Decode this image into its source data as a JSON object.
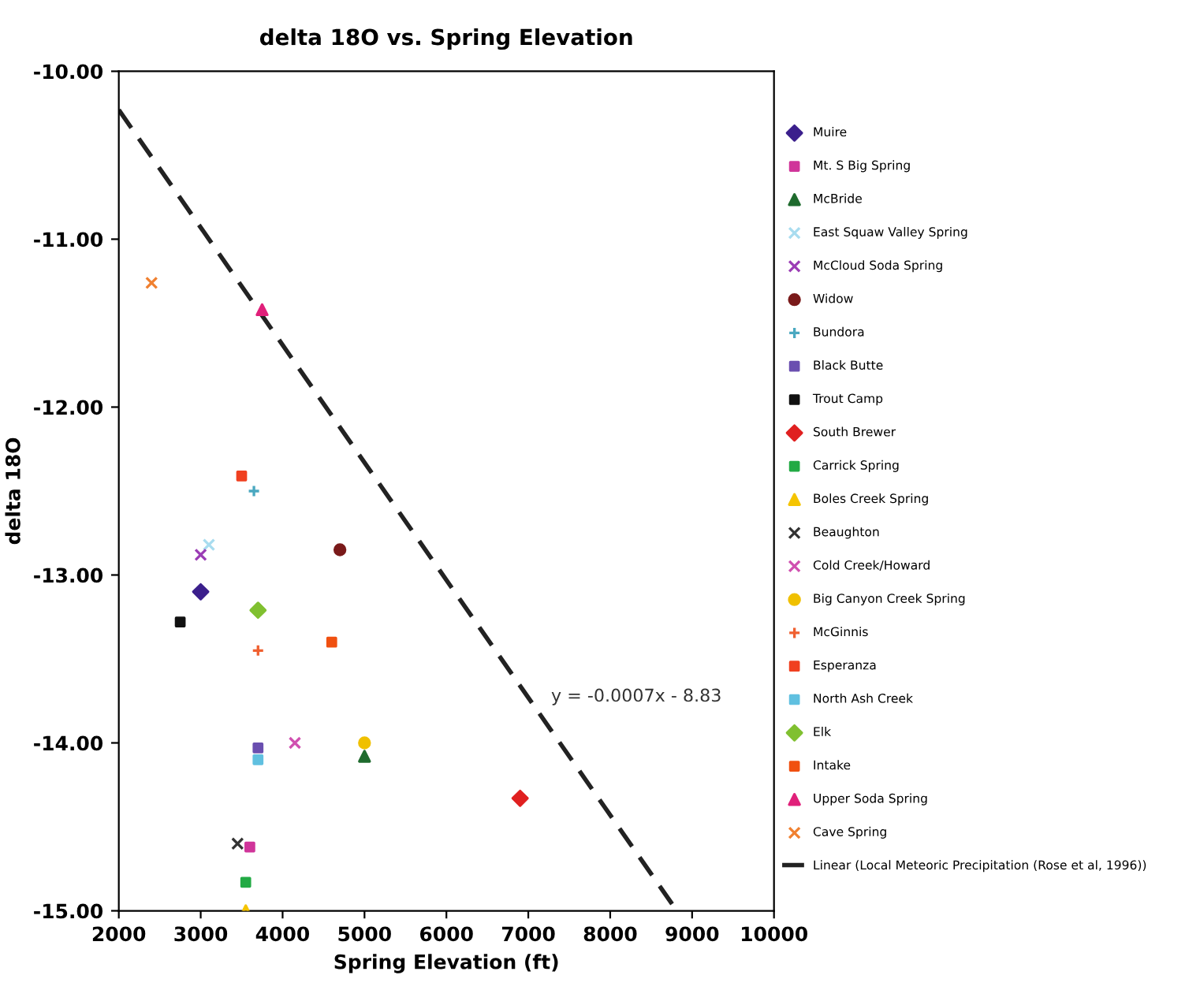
{
  "chart_data": {
    "type": "scatter",
    "title": "delta 18O vs. Spring Elevation",
    "xlabel": "Spring Elevation (ft)",
    "ylabel": "delta 18O",
    "xlim": [
      2000,
      10000
    ],
    "xticks": [
      2000,
      3000,
      4000,
      5000,
      6000,
      7000,
      8000,
      9000,
      10000
    ],
    "ylim": [
      -15,
      -10
    ],
    "yticks": [
      {
        "value": -15,
        "label": "-15.00"
      },
      {
        "value": -14,
        "label": "-14.00"
      },
      {
        "value": -13,
        "label": "-13.00"
      },
      {
        "value": -12,
        "label": "-12.00"
      },
      {
        "value": -11,
        "label": "-11.00"
      },
      {
        "value": -10,
        "label": "-10.00"
      }
    ],
    "grid": false,
    "legend": "right",
    "annotations": [
      "y = -0.0007x - 8.83"
    ],
    "series": [
      {
        "name": "Muire",
        "color": "#3b1f8c",
        "marker": "diamond",
        "x": [
          3000
        ],
        "values": [
          -13.1
        ]
      },
      {
        "name": "Mt. S Big Spring",
        "color": "#d0359a",
        "marker": "square",
        "x": [
          3600
        ],
        "values": [
          -14.62
        ]
      },
      {
        "name": "McBride",
        "color": "#1f6b2e",
        "marker": "triangle",
        "x": [
          5000
        ],
        "values": [
          -14.08
        ]
      },
      {
        "name": "East Squaw Valley Spring",
        "color": "#a8dcef",
        "marker": "cross",
        "x": [
          3100
        ],
        "values": [
          -12.82
        ]
      },
      {
        "name": "McCloud Soda Spring",
        "color": "#9b3db5",
        "marker": "cross",
        "x": [
          3000
        ],
        "values": [
          -12.88
        ]
      },
      {
        "name": "Widow",
        "color": "#7a1a1a",
        "marker": "circle",
        "x": [
          4700
        ],
        "values": [
          -12.85
        ]
      },
      {
        "name": "Bundora",
        "color": "#4aa8c0",
        "marker": "plus",
        "x": [
          3650
        ],
        "values": [
          -12.5
        ]
      },
      {
        "name": "Black Butte",
        "color": "#6a4fb0",
        "marker": "square",
        "x": [
          3700
        ],
        "values": [
          -14.03
        ]
      },
      {
        "name": "Trout Camp",
        "color": "#111111",
        "marker": "square",
        "x": [
          2750
        ],
        "values": [
          -13.28
        ]
      },
      {
        "name": "South Brewer",
        "color": "#e02020",
        "marker": "diamond",
        "x": [
          6900
        ],
        "values": [
          -14.33
        ]
      },
      {
        "name": "Carrick Spring",
        "color": "#22aa44",
        "marker": "square",
        "x": [
          3550
        ],
        "values": [
          -14.83
        ]
      },
      {
        "name": "Boles Creek Spring",
        "color": "#f5c400",
        "marker": "triangle",
        "x": [
          3550
        ],
        "values": [
          -15.0
        ]
      },
      {
        "name": "Beaughton",
        "color": "#333333",
        "marker": "cross",
        "x": [
          3450
        ],
        "values": [
          -14.6
        ]
      },
      {
        "name": "Cold Creek/Howard",
        "color": "#d050b0",
        "marker": "cross",
        "x": [
          4150
        ],
        "values": [
          -14.0
        ]
      },
      {
        "name": "Big Canyon Creek Spring",
        "color": "#f0c000",
        "marker": "circle",
        "x": [
          5000
        ],
        "values": [
          -14.0
        ]
      },
      {
        "name": "McGinnis",
        "color": "#f06030",
        "marker": "plus",
        "x": [
          3700
        ],
        "values": [
          -13.45
        ]
      },
      {
        "name": "Esperanza",
        "color": "#f04020",
        "marker": "square",
        "x": [
          3500
        ],
        "values": [
          -12.41
        ]
      },
      {
        "name": "North Ash Creek",
        "color": "#60c0e0",
        "marker": "square",
        "x": [
          3700
        ],
        "values": [
          -14.1
        ]
      },
      {
        "name": "Elk",
        "color": "#80c030",
        "marker": "diamond",
        "x": [
          3700
        ],
        "values": [
          -13.21
        ]
      },
      {
        "name": "Intake",
        "color": "#f05010",
        "marker": "square",
        "x": [
          4600
        ],
        "values": [
          -13.4
        ]
      },
      {
        "name": "Upper Soda Spring",
        "color": "#e0207a",
        "marker": "triangle",
        "x": [
          3750
        ],
        "values": [
          -11.42
        ]
      },
      {
        "name": "Cave Spring",
        "color": "#f08030",
        "marker": "cross",
        "x": [
          2400
        ],
        "values": [
          -11.26
        ]
      },
      {
        "name": "Linear (Local Meteoric Precipitation (Rose et al, 1996))",
        "type": "line",
        "line_style": "dashed",
        "marker": "none",
        "color": "#222222",
        "x": [
          2000,
          8814
        ],
        "values": [
          -10.23,
          -15.0
        ]
      }
    ]
  }
}
